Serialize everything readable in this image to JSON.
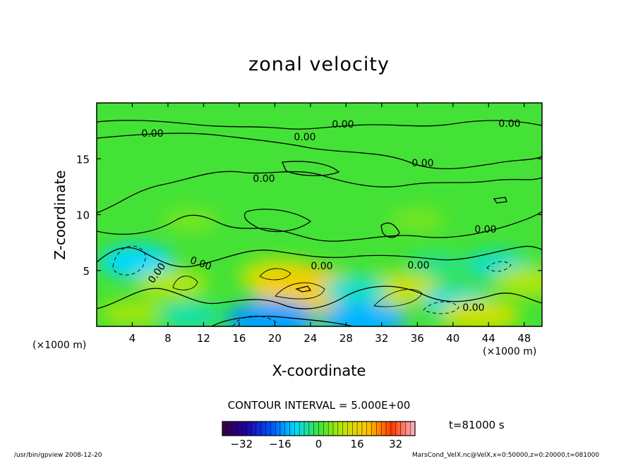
{
  "chart_data": {
    "type": "heatmap",
    "title": "zonal velocity",
    "xlabel": "X-coordinate",
    "ylabel": "Z-coordinate",
    "x_unit_left": "(×1000 m)",
    "x_unit_right": "(×1000 m)",
    "xlim": [
      0,
      50
    ],
    "ylim": [
      0,
      20
    ],
    "x_ticks": [
      4,
      8,
      12,
      16,
      20,
      24,
      28,
      32,
      36,
      40,
      44,
      48
    ],
    "y_ticks": [
      5,
      10,
      15
    ],
    "contour_interval_text": "CONTOUR INTERVAL = 5.000E+00",
    "contour_labels": [
      "0.00"
    ],
    "colorbar": {
      "range": [
        -40,
        40
      ],
      "ticks": [
        -32,
        -16,
        0,
        16,
        32
      ],
      "tick_labels": [
        "−32",
        "−16",
        "0",
        "16",
        "32"
      ]
    },
    "time_label": "t=81000 s",
    "blobs": [
      {
        "x": 4.5,
        "z": 5.8,
        "v": -7
      },
      {
        "x": 8.5,
        "z": 3.8,
        "v": 6
      },
      {
        "x": 10.5,
        "z": 9.5,
        "v": 3
      },
      {
        "x": 20.5,
        "z": 4.5,
        "v": 8
      },
      {
        "x": 23.5,
        "z": 3.3,
        "v": 13
      },
      {
        "x": 19.5,
        "z": 0.6,
        "v": -10
      },
      {
        "x": 30,
        "z": 0.6,
        "v": -9
      },
      {
        "x": 34,
        "z": 3.3,
        "v": 8
      },
      {
        "x": 29,
        "z": 3.3,
        "v": -5
      },
      {
        "x": 40.5,
        "z": 2.2,
        "v": -6
      },
      {
        "x": 43,
        "z": 1,
        "v": 8
      },
      {
        "x": 4,
        "z": 1.2,
        "v": 5
      },
      {
        "x": 10.5,
        "z": 1.0,
        "v": -4
      },
      {
        "x": 45,
        "z": 5.5,
        "v": -5
      },
      {
        "x": 48.5,
        "z": 4,
        "v": 6
      },
      {
        "x": 38,
        "z": 5.5,
        "v": -3
      },
      {
        "x": 36,
        "z": 9.5,
        "v": 3
      }
    ]
  },
  "footer_left": "/usr/bin/gpview  2008-12-20",
  "footer_right": "MarsCond_VelX.nc@VelX,x=0:50000,z=0:20000,t=081000"
}
